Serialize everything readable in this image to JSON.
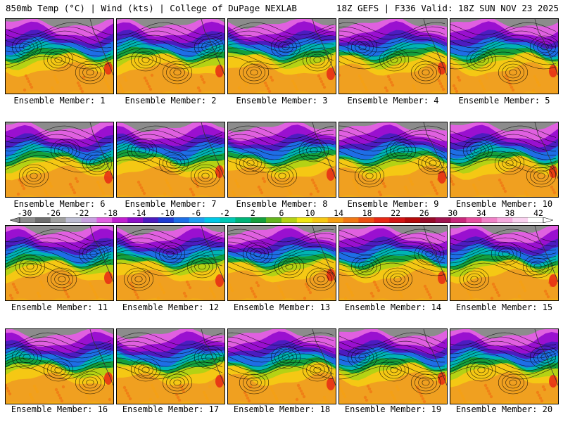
{
  "header": {
    "left": "850mb Temp (°C) | Wind (kts) | College of DuPage NEXLAB",
    "right": "18Z GEFS | F336 Valid: 18Z SUN NOV 23 2025"
  },
  "panels": [
    {
      "label": "Ensemble Member: 1"
    },
    {
      "label": "Ensemble Member: 2"
    },
    {
      "label": "Ensemble Member: 3"
    },
    {
      "label": "Ensemble Member: 4"
    },
    {
      "label": "Ensemble Member: 5"
    },
    {
      "label": "Ensemble Member: 6"
    },
    {
      "label": "Ensemble Member: 7"
    },
    {
      "label": "Ensemble Member: 8"
    },
    {
      "label": "Ensemble Member: 9"
    },
    {
      "label": "Ensemble Member: 10"
    },
    {
      "label": "Ensemble Member: 11"
    },
    {
      "label": "Ensemble Member: 12"
    },
    {
      "label": "Ensemble Member: 13"
    },
    {
      "label": "Ensemble Member: 14"
    },
    {
      "label": "Ensemble Member: 15"
    },
    {
      "label": "Ensemble Member: 16"
    },
    {
      "label": "Ensemble Member: 17"
    },
    {
      "label": "Ensemble Member: 18"
    },
    {
      "label": "Ensemble Member: 19"
    },
    {
      "label": "Ensemble Member: 20"
    }
  ],
  "colorbar": {
    "ticks": [
      "-30",
      "-26",
      "-22",
      "-18",
      "-14",
      "-10",
      "-6",
      "-2",
      "2",
      "6",
      "10",
      "14",
      "18",
      "22",
      "26",
      "30",
      "34",
      "38",
      "42"
    ],
    "colors": [
      "#8c8c8c",
      "#6e6e6e",
      "#a0a0a0",
      "#bdbdd2",
      "#c8a0e0",
      "#e060e0",
      "#c020d0",
      "#8c10c8",
      "#4c1cc0",
      "#1e3cd2",
      "#1e6ee6",
      "#1e9ef0",
      "#00c8e6",
      "#00c8b4",
      "#00b478",
      "#14a03c",
      "#64b41e",
      "#b4d214",
      "#f0e614",
      "#f5c814",
      "#f5a014",
      "#f07814",
      "#eb5014",
      "#e62814",
      "#d21414",
      "#b40a0a",
      "#960a28",
      "#a01450",
      "#c8287c",
      "#e650a0",
      "#f082c8",
      "#f5aade",
      "#fad2f0",
      "#ffffff"
    ]
  }
}
